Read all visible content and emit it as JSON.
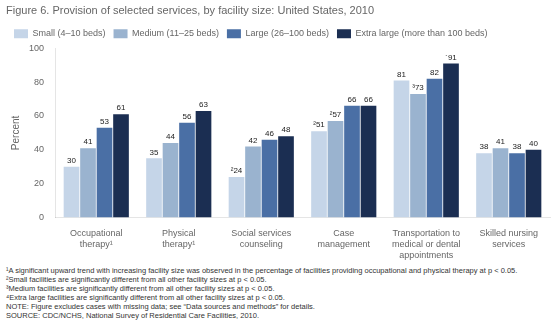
{
  "chart_data": {
    "type": "bar",
    "title": "Figure 6. Provision of selected services, by facility size: United States, 2010",
    "categories": [
      "Occupational\ntherapy¹",
      "Physical\ntherapy¹",
      "Social services\ncounseling",
      "Case\nmanagement",
      "Transportation to\nmedical or dental\nappointments",
      "Skilled nursing\nservices"
    ],
    "series": [
      {
        "name": "Small (4–10 beds)",
        "color": "#c5d5e8",
        "values": [
          30,
          35,
          24,
          51,
          81,
          38
        ],
        "value_labels": [
          "30",
          "35",
          "²24",
          "²51",
          "81",
          "38"
        ]
      },
      {
        "name": "Medium (11–25 beds)",
        "color": "#9ab3cf",
        "values": [
          41,
          44,
          42,
          57,
          73,
          41
        ],
        "value_labels": [
          "41",
          "44",
          "42",
          "²57",
          "³73",
          "41"
        ]
      },
      {
        "name": "Large (26–100 beds)",
        "color": "#4a6fa5",
        "values": [
          53,
          56,
          46,
          66,
          82,
          38
        ],
        "value_labels": [
          "53",
          "56",
          "46",
          "66",
          "82",
          "38"
        ]
      },
      {
        "name": "Extra large (more than 100 beds)",
        "color": "#1b2e52",
        "values": [
          61,
          63,
          48,
          66,
          91,
          40
        ],
        "value_labels": [
          "61",
          "63",
          "48",
          "66",
          "´91",
          "40"
        ]
      }
    ],
    "ylabel": "Percent",
    "ylim": [
      0,
      100
    ],
    "yticks": [
      0,
      20,
      40,
      60,
      80,
      100
    ],
    "grid": false,
    "legend": "top",
    "data_labels": true,
    "annotations": [
      "¹A significant upward trend with increasing facility size was observed in the percentage of facilities providing occupational and physical therapy at p < 0.05.",
      "²Small facilities are significantly different from all other facility sizes at p < 0.05.",
      "³Medium facilities are significantly different from all other facility sizes at p < 0.05.",
      "⁴Extra large facilities are significantly different from all other facility sizes at p < 0.05.",
      "NOTE: Figure excludes cases with missing data; see “Data sources and methods” for details.",
      "SOURCE: CDC/NCHS, National Survey of Residential Care Facilities, 2010."
    ]
  }
}
